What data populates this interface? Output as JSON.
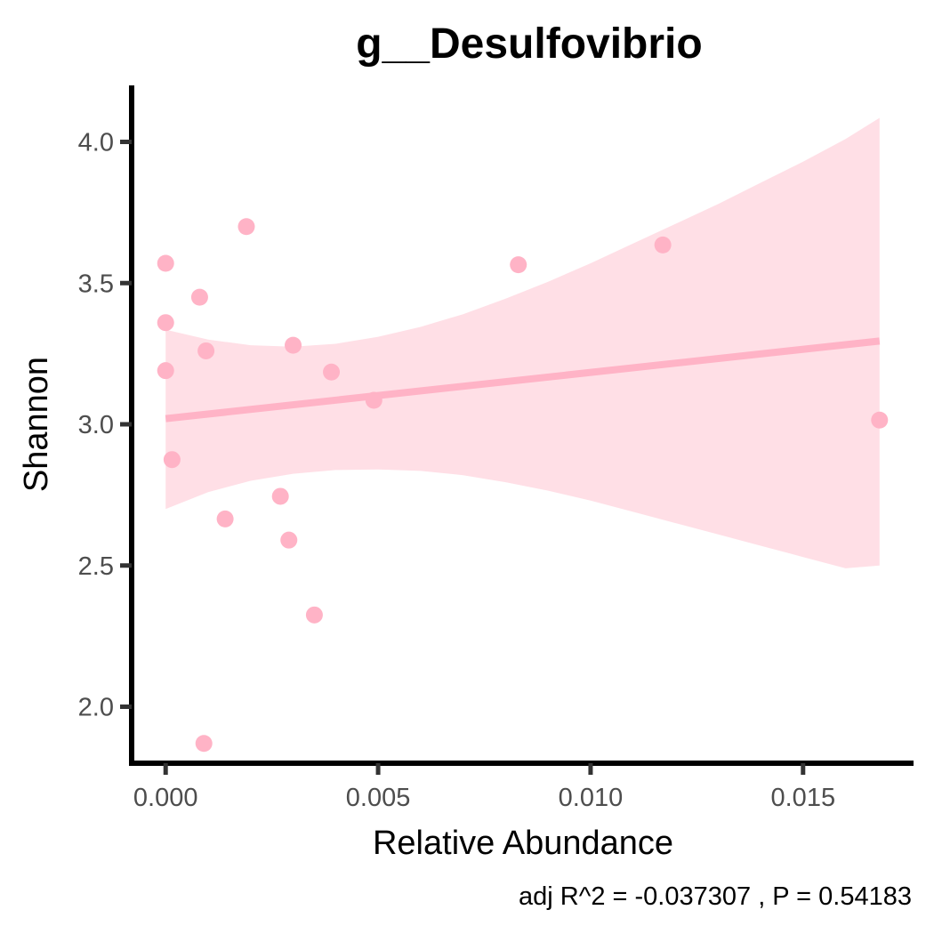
{
  "chart_data": {
    "type": "scatter",
    "title": "g__Desulfovibrio",
    "xlabel": "Relative Abundance",
    "ylabel": "Shannon",
    "caption": "adj R^2 =  -0.037307 , P = 0.54183",
    "xlim": [
      -0.0008,
      0.0176
    ],
    "ylim": [
      1.8,
      4.2
    ],
    "x_ticks": [
      0.0,
      0.005,
      0.01,
      0.015
    ],
    "x_tick_labels": [
      "0.000",
      "0.005",
      "0.010",
      "0.015"
    ],
    "y_ticks": [
      2.0,
      2.5,
      3.0,
      3.5,
      4.0
    ],
    "y_tick_labels": [
      "2.0",
      "2.5",
      "3.0",
      "3.5",
      "4.0"
    ],
    "grid": false,
    "legend": "none",
    "point_color": "#ffb3c6",
    "line_color": "#ffb3c6",
    "band_color": "#ffdfe6",
    "axis_color": "#000000",
    "points": [
      {
        "x": 0.0,
        "y": 3.57
      },
      {
        "x": 0.0,
        "y": 3.36
      },
      {
        "x": 0.0,
        "y": 3.19
      },
      {
        "x": 0.00015,
        "y": 2.875
      },
      {
        "x": 0.0008,
        "y": 3.45
      },
      {
        "x": 0.00095,
        "y": 3.26
      },
      {
        "x": 0.0009,
        "y": 1.87
      },
      {
        "x": 0.0014,
        "y": 2.665
      },
      {
        "x": 0.0019,
        "y": 3.7
      },
      {
        "x": 0.0027,
        "y": 2.745
      },
      {
        "x": 0.0029,
        "y": 2.59
      },
      {
        "x": 0.003,
        "y": 3.28
      },
      {
        "x": 0.0035,
        "y": 2.325
      },
      {
        "x": 0.0039,
        "y": 3.185
      },
      {
        "x": 0.0049,
        "y": 3.085
      },
      {
        "x": 0.0083,
        "y": 3.565
      },
      {
        "x": 0.0117,
        "y": 3.635
      },
      {
        "x": 0.0168,
        "y": 3.015
      }
    ],
    "fit_line": {
      "x": [
        0.0,
        0.0168
      ],
      "y": [
        3.02,
        3.295
      ]
    },
    "confidence_band": {
      "x": [
        0.0,
        0.001,
        0.002,
        0.003,
        0.004,
        0.005,
        0.006,
        0.007,
        0.008,
        0.009,
        0.01,
        0.011,
        0.012,
        0.013,
        0.014,
        0.015,
        0.016,
        0.0168
      ],
      "upper": [
        3.335,
        3.3,
        3.28,
        3.275,
        3.285,
        3.31,
        3.345,
        3.39,
        3.445,
        3.505,
        3.57,
        3.64,
        3.71,
        3.78,
        3.855,
        3.93,
        4.01,
        4.085
      ],
      "lower": [
        2.7,
        2.76,
        2.8,
        2.825,
        2.838,
        2.84,
        2.835,
        2.82,
        2.795,
        2.765,
        2.73,
        2.69,
        2.65,
        2.61,
        2.57,
        2.53,
        2.49,
        2.5
      ]
    }
  }
}
